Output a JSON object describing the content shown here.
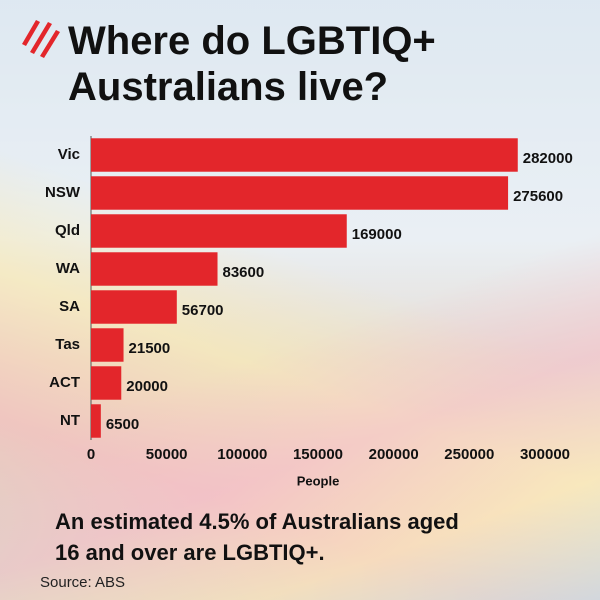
{
  "chart_data": {
    "type": "bar",
    "orientation": "horizontal",
    "title": "Where do LGBTIQ+ Australians live?",
    "categories": [
      "Vic",
      "NSW",
      "Qld",
      "WA",
      "SA",
      "Tas",
      "ACT",
      "NT"
    ],
    "values": [
      282000,
      275600,
      169000,
      83600,
      56700,
      21500,
      20000,
      6500
    ],
    "color": "#e3262b",
    "xlim": [
      0,
      300000
    ],
    "xticks": [
      0,
      50000,
      100000,
      150000,
      200000,
      250000,
      300000
    ],
    "xlabel": "People",
    "note": "An estimated 4.5% of Australians aged 16 and over are LGBTIQ+.",
    "source": "Source: ABS"
  }
}
